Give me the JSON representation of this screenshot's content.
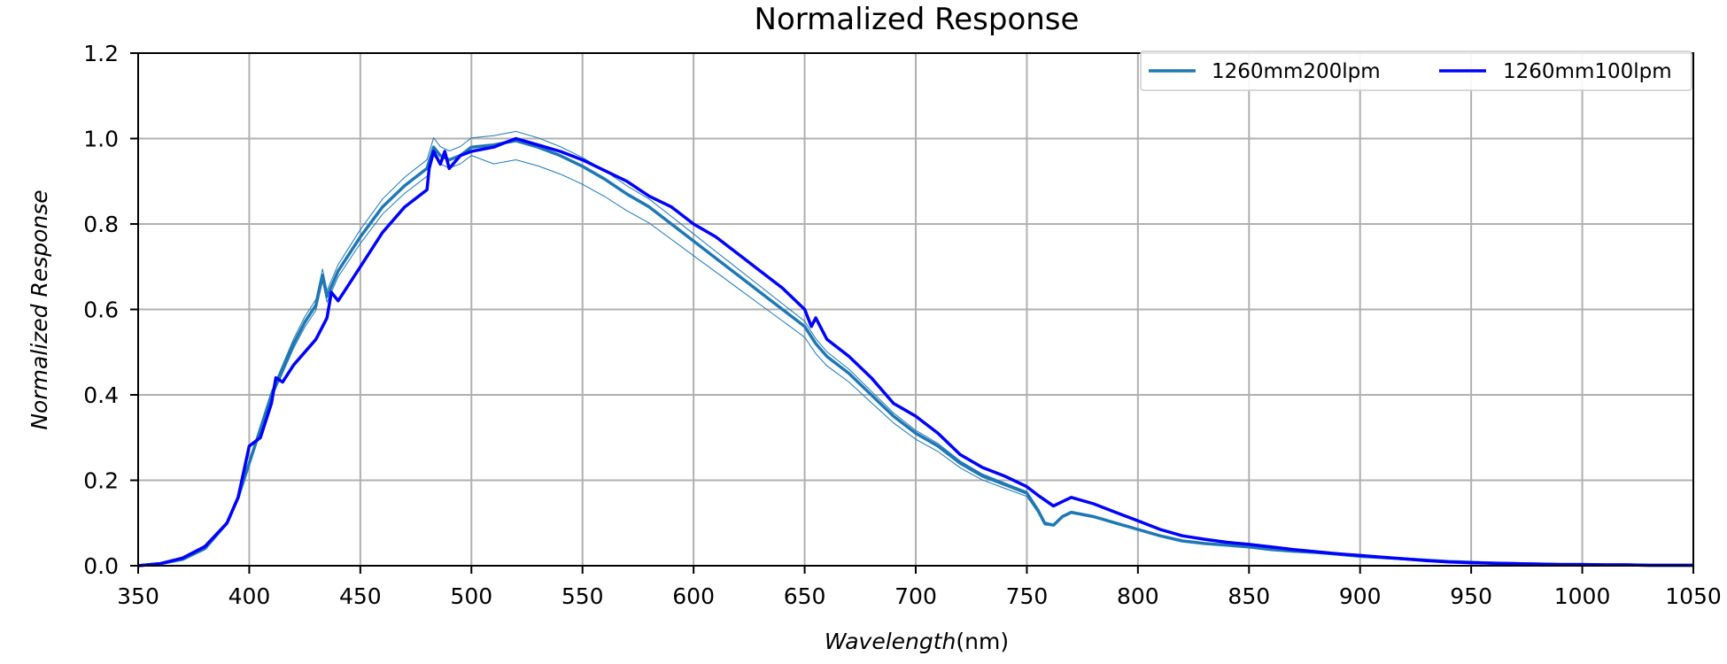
{
  "chart_data": {
    "type": "line",
    "title": "Normalized Response",
    "xlabel": "Wavelength",
    "xlabel_unit": "(nm)",
    "ylabel": "Normalized Response",
    "xlim": [
      350,
      1050
    ],
    "ylim": [
      0,
      1.2
    ],
    "xticks": [
      350,
      400,
      450,
      500,
      550,
      600,
      650,
      700,
      750,
      800,
      850,
      900,
      950,
      1000,
      1050
    ],
    "yticks": [
      "0.0",
      "0.2",
      "0.4",
      "0.6",
      "0.8",
      "1.0",
      "1.2"
    ],
    "grid": true,
    "legend_position": "top-right",
    "series": [
      {
        "name": "1260mm200lpm",
        "color": "#1f77b4",
        "band": true,
        "x": [
          350,
          360,
          370,
          380,
          390,
          395,
          400,
          405,
          410,
          415,
          420,
          425,
          430,
          433,
          435,
          440,
          450,
          460,
          470,
          480,
          483,
          486,
          490,
          495,
          500,
          510,
          520,
          530,
          540,
          550,
          560,
          570,
          580,
          590,
          600,
          610,
          620,
          630,
          640,
          650,
          655,
          660,
          670,
          680,
          690,
          700,
          710,
          720,
          730,
          740,
          750,
          755,
          758,
          762,
          766,
          770,
          780,
          790,
          800,
          810,
          820,
          830,
          840,
          850,
          860,
          870,
          880,
          890,
          900,
          910,
          920,
          930,
          940,
          950,
          960,
          970,
          980,
          990,
          1000,
          1010,
          1020,
          1030,
          1040,
          1050
        ],
        "y": [
          0.0,
          0.005,
          0.015,
          0.04,
          0.1,
          0.16,
          0.24,
          0.32,
          0.4,
          0.46,
          0.52,
          0.57,
          0.61,
          0.68,
          0.63,
          0.69,
          0.77,
          0.84,
          0.89,
          0.93,
          0.98,
          0.96,
          0.95,
          0.96,
          0.98,
          0.985,
          0.995,
          0.98,
          0.96,
          0.935,
          0.905,
          0.87,
          0.84,
          0.8,
          0.76,
          0.72,
          0.68,
          0.64,
          0.6,
          0.56,
          0.52,
          0.49,
          0.45,
          0.4,
          0.35,
          0.31,
          0.28,
          0.24,
          0.21,
          0.19,
          0.17,
          0.13,
          0.1,
          0.095,
          0.115,
          0.125,
          0.115,
          0.1,
          0.085,
          0.07,
          0.058,
          0.052,
          0.048,
          0.044,
          0.038,
          0.034,
          0.031,
          0.027,
          0.022,
          0.019,
          0.016,
          0.013,
          0.01,
          0.008,
          0.006,
          0.005,
          0.004,
          0.003,
          0.003,
          0.002,
          0.002,
          0.001,
          0.001,
          0.001
        ]
      },
      {
        "name": "1260mm100lpm",
        "color": "#0000ff",
        "band": false,
        "x": [
          350,
          360,
          370,
          380,
          390,
          395,
          400,
          405,
          410,
          412,
          415,
          420,
          425,
          430,
          433,
          435,
          437,
          440,
          450,
          460,
          470,
          480,
          481,
          483,
          486,
          488,
          490,
          495,
          500,
          510,
          515,
          520,
          530,
          540,
          550,
          560,
          570,
          580,
          590,
          600,
          610,
          620,
          630,
          640,
          650,
          653,
          655,
          660,
          670,
          680,
          690,
          700,
          710,
          720,
          730,
          740,
          750,
          755,
          762,
          766,
          770,
          780,
          790,
          800,
          810,
          820,
          830,
          840,
          850,
          860,
          870,
          880,
          890,
          900,
          910,
          920,
          930,
          940,
          950,
          960,
          970,
          980,
          990,
          1000,
          1010,
          1020,
          1030,
          1040,
          1050
        ],
        "y": [
          0.0,
          0.005,
          0.018,
          0.045,
          0.1,
          0.16,
          0.28,
          0.3,
          0.38,
          0.44,
          0.43,
          0.47,
          0.5,
          0.53,
          0.56,
          0.58,
          0.64,
          0.62,
          0.7,
          0.78,
          0.84,
          0.88,
          0.93,
          0.97,
          0.94,
          0.97,
          0.93,
          0.96,
          0.97,
          0.98,
          0.99,
          1.0,
          0.985,
          0.97,
          0.95,
          0.925,
          0.9,
          0.865,
          0.84,
          0.8,
          0.77,
          0.73,
          0.69,
          0.65,
          0.6,
          0.56,
          0.58,
          0.53,
          0.49,
          0.44,
          0.38,
          0.35,
          0.31,
          0.26,
          0.23,
          0.21,
          0.185,
          0.165,
          0.14,
          0.15,
          0.16,
          0.145,
          0.125,
          0.105,
          0.085,
          0.07,
          0.062,
          0.055,
          0.05,
          0.044,
          0.038,
          0.033,
          0.028,
          0.024,
          0.02,
          0.016,
          0.012,
          0.009,
          0.007,
          0.006,
          0.005,
          0.004,
          0.003,
          0.003,
          0.002,
          0.002,
          0.001,
          0.001,
          0.001
        ]
      }
    ]
  }
}
